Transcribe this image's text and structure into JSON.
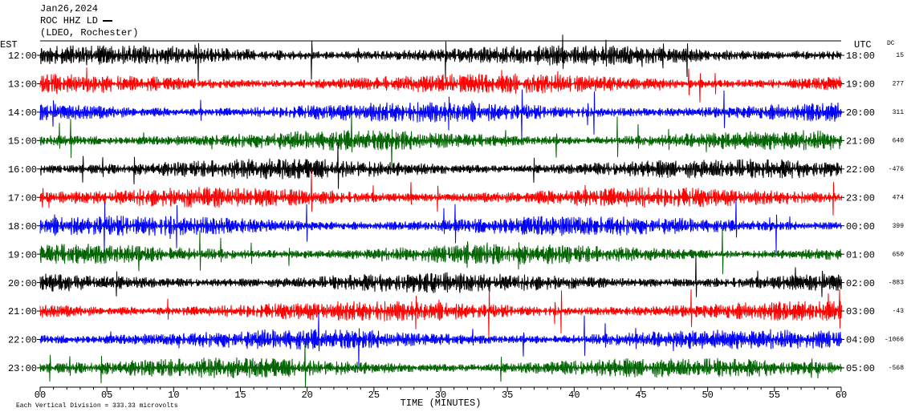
{
  "header": {
    "date": "Jan26,2024",
    "station": "ROC HHZ LD",
    "network": "(LDEO, Rochester)"
  },
  "left_axis": {
    "label": "EST",
    "ticks": [
      "12:00",
      "13:00",
      "14:00",
      "15:00",
      "16:00",
      "17:00",
      "18:00",
      "19:00",
      "20:00",
      "21:00",
      "22:00",
      "23:00"
    ]
  },
  "right_axis": {
    "label": "UTC",
    "ticks": [
      "18:00",
      "19:00",
      "20:00",
      "21:00",
      "22:00",
      "23:00",
      "00:00",
      "01:00",
      "02:00",
      "03:00",
      "04:00",
      "05:00"
    ]
  },
  "dc": {
    "label": "DC",
    "values": [
      15,
      277,
      311,
      640,
      -476,
      474,
      399,
      650,
      -883,
      -43,
      -1066,
      -568
    ]
  },
  "x_axis": {
    "label": "TIME (MINUTES)",
    "ticks": [
      "00",
      "05",
      "10",
      "15",
      "20",
      "25",
      "30",
      "35",
      "40",
      "45",
      "50",
      "55",
      "60"
    ]
  },
  "footer": "Each Vertical Division = 333.33 microvolts",
  "trace_colors": [
    "#000000",
    "#ff0000",
    "#0000ff",
    "#006400"
  ]
}
